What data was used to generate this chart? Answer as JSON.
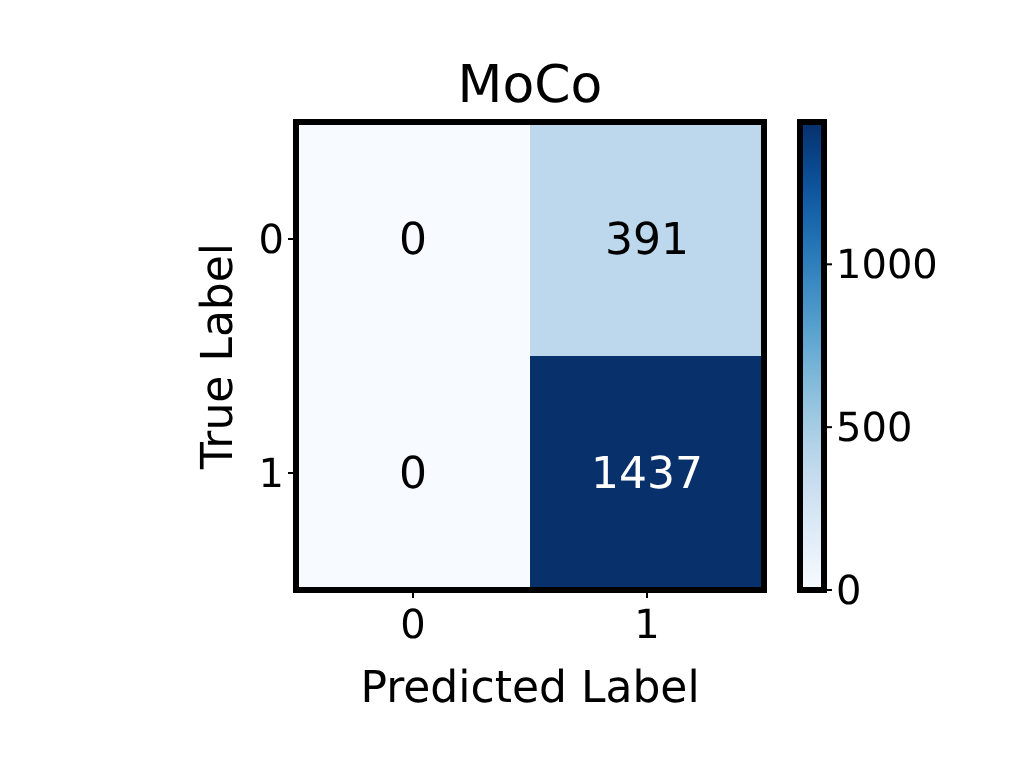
{
  "chart_data": {
    "type": "heatmap",
    "title": "MoCo",
    "xlabel": "Predicted Label",
    "ylabel": "True Label",
    "categories": [
      "0",
      "1"
    ],
    "y_categories": [
      "0",
      "1"
    ],
    "cells": [
      [
        0,
        391
      ],
      [
        0,
        1437
      ]
    ],
    "clim": [
      0,
      1437
    ],
    "cticks": [
      0,
      500,
      1000
    ],
    "data_labels": true
  }
}
